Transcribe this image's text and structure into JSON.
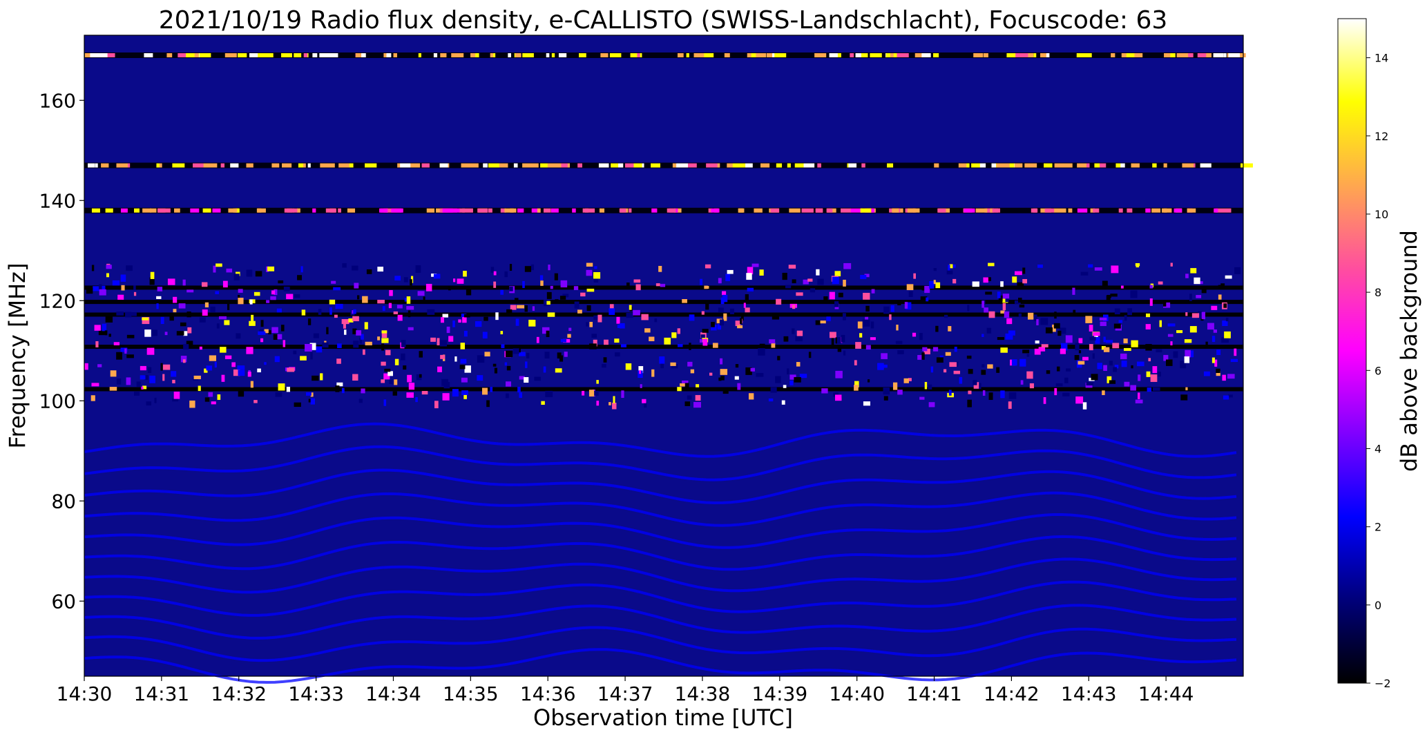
{
  "chart_data": {
    "type": "heatmap",
    "title": "2021/10/19  Radio flux density, e-CALLISTO (SWISS-Landschlacht), Focuscode: 63",
    "xlabel": "Observation time [UTC]",
    "ylabel": "Frequency [MHz]",
    "x_ticks": [
      "14:30",
      "14:31",
      "14:32",
      "14:33",
      "14:34",
      "14:35",
      "14:36",
      "14:37",
      "14:38",
      "14:39",
      "14:40",
      "14:41",
      "14:42",
      "14:43",
      "14:44"
    ],
    "xlim_minutes": [
      0,
      15
    ],
    "y_ticks": [
      60,
      80,
      100,
      120,
      140,
      160
    ],
    "ylim": [
      45,
      173
    ],
    "colorbar": {
      "label": "dB above background",
      "ticks": [
        -2,
        0,
        2,
        4,
        6,
        8,
        10,
        12,
        14
      ],
      "range": [
        -2,
        15
      ],
      "colormap": [
        "#000000",
        "#00007a",
        "#0000ff",
        "#7f00ff",
        "#ff00ff",
        "#ff4f9e",
        "#ffa84e",
        "#ffff00",
        "#ffffff"
      ]
    },
    "background_color": "#0a0a8a",
    "features": [
      {
        "name": "persistent interference band",
        "freq_mhz": 169,
        "db": 15
      },
      {
        "name": "persistent interference band",
        "freq_mhz": 147,
        "db": 15
      },
      {
        "name": "persistent interference band",
        "freq_mhz": 138,
        "db": 12
      },
      {
        "name": "broadband interference cluster",
        "freq_range_mhz": [
          99,
          127
        ],
        "db_range": [
          -2,
          15
        ]
      },
      {
        "name": "slow wavy interference stripes",
        "freq_range_mhz": [
          45,
          95
        ],
        "db": 2
      }
    ]
  }
}
